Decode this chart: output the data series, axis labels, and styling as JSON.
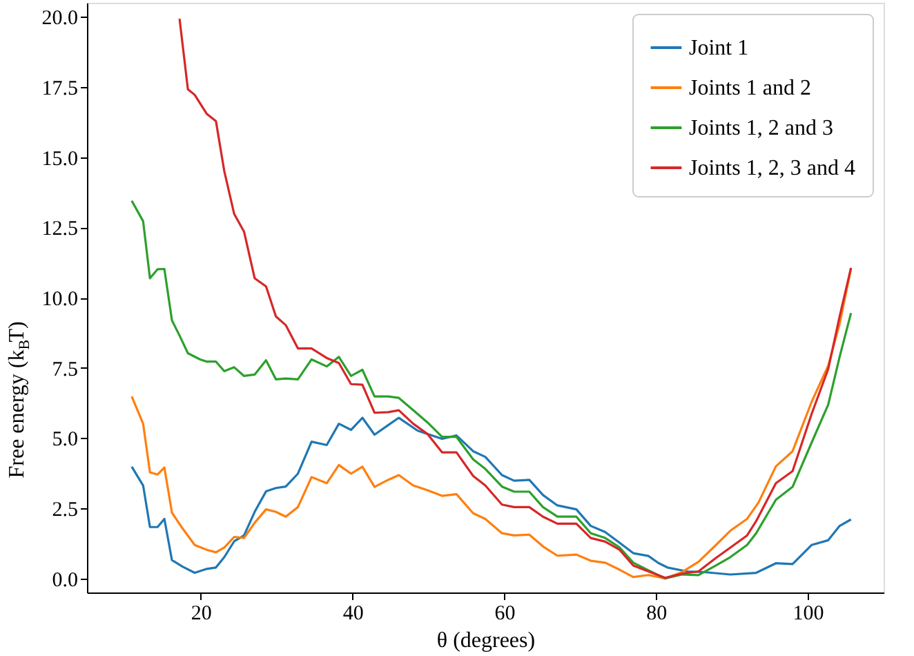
{
  "chart_data": {
    "type": "line",
    "xlabel": "θ (degrees)",
    "ylabel": "Free energy (k$_{B}$T)",
    "xlim": [
      5,
      110
    ],
    "xticks": [
      20,
      40,
      60,
      80,
      100
    ],
    "ylim": [
      -0.5,
      20.5
    ],
    "yticks": [
      {
        "value": 0,
        "label": "0.0"
      },
      2.5,
      {
        "value": 5,
        "label": "5.0"
      },
      7.5,
      {
        "value": 10,
        "label": "10.0"
      },
      12.5,
      {
        "value": 15,
        "label": "15.0"
      },
      17.5,
      {
        "value": 20,
        "label": "20.0"
      }
    ],
    "grid": false,
    "legend": "top right",
    "line_style": "solid",
    "marker": "none",
    "series": [
      {
        "name": "Joint 1",
        "color": "#1f77b4",
        "x": [
          10.9,
          12.4,
          13.3,
          14.3,
          15.2,
          16.2,
          17.6,
          19.2,
          20.8,
          22.0,
          23.1,
          24.4,
          25.7,
          27.1,
          28.6,
          29.9,
          31.2,
          32.8,
          34.6,
          36.6,
          38.2,
          39.8,
          41.3,
          42.9,
          44.7,
          46.1,
          48.6,
          51.8,
          53.7,
          55.9,
          57.5,
          59.7,
          61.3,
          63.3,
          65.1,
          67.0,
          69.5,
          71.4,
          73.3,
          75.2,
          77.0,
          79.0,
          80.3,
          81.5,
          84.1,
          86.6,
          89.8,
          93.2,
          95.8,
          98.0,
          100.5,
          102.7,
          104.2,
          105.7
        ],
        "values": [
          3.98,
          3.31,
          1.83,
          1.83,
          2.12,
          0.65,
          0.42,
          0.2,
          0.34,
          0.39,
          0.76,
          1.32,
          1.53,
          2.37,
          3.1,
          3.22,
          3.27,
          3.73,
          4.87,
          4.75,
          5.51,
          5.29,
          5.72,
          5.12,
          5.46,
          5.72,
          5.26,
          4.97,
          5.09,
          4.53,
          4.33,
          3.68,
          3.48,
          3.51,
          2.97,
          2.6,
          2.46,
          1.87,
          1.65,
          1.27,
          0.9,
          0.8,
          0.55,
          0.39,
          0.25,
          0.22,
          0.14,
          0.2,
          0.54,
          0.51,
          1.19,
          1.36,
          1.87,
          2.1
        ]
      },
      {
        "name": "Joints 1 and 2",
        "color": "#ff7f0e",
        "x": [
          10.9,
          12.4,
          13.3,
          14.3,
          15.2,
          16.2,
          17.6,
          19.2,
          20.8,
          22.0,
          23.1,
          24.4,
          25.7,
          27.1,
          28.6,
          29.9,
          31.2,
          32.8,
          34.6,
          36.6,
          38.2,
          39.8,
          41.3,
          42.9,
          44.7,
          46.1,
          48.0,
          49.9,
          51.8,
          53.7,
          55.9,
          57.5,
          59.7,
          61.3,
          63.3,
          65.1,
          67.0,
          69.5,
          71.4,
          73.3,
          75.2,
          77.0,
          79.0,
          81.2,
          83.4,
          85.6,
          87.9,
          89.8,
          92.0,
          93.5,
          95.8,
          98.0,
          100.5,
          102.7,
          104.2,
          105.7
        ],
        "values": [
          6.48,
          5.51,
          3.78,
          3.7,
          3.95,
          2.34,
          1.78,
          1.19,
          1.02,
          0.93,
          1.1,
          1.48,
          1.44,
          1.98,
          2.46,
          2.37,
          2.2,
          2.54,
          3.61,
          3.39,
          4.04,
          3.73,
          3.98,
          3.26,
          3.51,
          3.68,
          3.31,
          3.14,
          2.94,
          3.0,
          2.32,
          2.12,
          1.61,
          1.53,
          1.56,
          1.14,
          0.81,
          0.85,
          0.63,
          0.56,
          0.31,
          0.05,
          0.12,
          0.0,
          0.22,
          0.59,
          1.19,
          1.7,
          2.12,
          2.7,
          3.99,
          4.53,
          6.28,
          7.58,
          9.07,
          11.03
        ]
      },
      {
        "name": "Joints 1, 2 and 3",
        "color": "#2ca02c",
        "x": [
          10.9,
          12.4,
          13.3,
          14.3,
          15.2,
          16.2,
          17.2,
          18.3,
          19.9,
          20.8,
          22.0,
          23.1,
          24.4,
          25.7,
          27.1,
          28.6,
          29.9,
          31.2,
          32.8,
          34.6,
          36.6,
          38.2,
          39.8,
          41.3,
          42.9,
          44.7,
          46.1,
          48.0,
          49.9,
          51.8,
          53.7,
          55.9,
          57.5,
          59.7,
          61.3,
          63.3,
          65.1,
          67.0,
          69.5,
          71.4,
          73.3,
          75.2,
          77.0,
          79.0,
          81.2,
          83.4,
          85.6,
          87.9,
          89.8,
          92.0,
          93.2,
          95.8,
          98.0,
          100.5,
          102.7,
          104.2,
          105.7
        ],
        "values": [
          13.45,
          12.72,
          10.69,
          11.01,
          11.02,
          9.19,
          8.65,
          8.02,
          7.8,
          7.72,
          7.72,
          7.38,
          7.52,
          7.21,
          7.26,
          7.77,
          7.09,
          7.12,
          7.09,
          7.8,
          7.55,
          7.89,
          7.21,
          7.43,
          6.48,
          6.48,
          6.43,
          5.99,
          5.55,
          5.04,
          5.04,
          4.24,
          3.9,
          3.27,
          3.09,
          3.09,
          2.54,
          2.2,
          2.2,
          1.61,
          1.44,
          1.1,
          0.56,
          0.29,
          0.0,
          0.14,
          0.12,
          0.46,
          0.76,
          1.19,
          1.61,
          2.8,
          3.26,
          4.83,
          6.19,
          7.89,
          9.45
        ]
      },
      {
        "name": "Joints 1, 2, 3 and 4",
        "color": "#d62728",
        "x": [
          17.2,
          18.3,
          19.2,
          20.8,
          22.0,
          23.1,
          24.4,
          25.7,
          27.1,
          28.6,
          29.9,
          31.2,
          32.8,
          34.6,
          36.6,
          38.2,
          39.8,
          41.3,
          42.9,
          44.7,
          46.1,
          48.0,
          49.9,
          51.8,
          53.7,
          55.9,
          57.5,
          59.7,
          61.3,
          63.3,
          65.1,
          67.0,
          69.5,
          71.4,
          73.3,
          75.2,
          77.0,
          79.0,
          81.2,
          83.4,
          85.6,
          87.9,
          89.8,
          92.0,
          93.2,
          95.8,
          98.0,
          100.5,
          102.7,
          104.2,
          105.7
        ],
        "values": [
          19.93,
          17.42,
          17.22,
          16.54,
          16.28,
          14.5,
          12.98,
          12.35,
          10.69,
          10.4,
          9.33,
          9.02,
          8.19,
          8.19,
          7.85,
          7.67,
          6.92,
          6.9,
          5.9,
          5.92,
          5.99,
          5.51,
          5.14,
          4.49,
          4.49,
          3.65,
          3.31,
          2.63,
          2.54,
          2.54,
          2.2,
          1.95,
          1.95,
          1.44,
          1.31,
          1.02,
          0.46,
          0.25,
          0.02,
          0.17,
          0.25,
          0.73,
          1.1,
          1.53,
          2.04,
          3.39,
          3.82,
          5.85,
          7.46,
          9.33,
          11.06
        ]
      }
    ]
  }
}
